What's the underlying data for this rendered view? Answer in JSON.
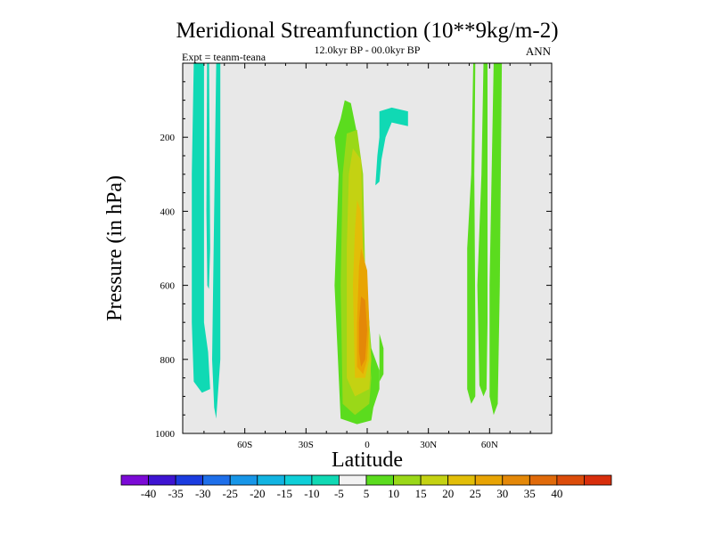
{
  "chart_data": {
    "type": "filled-contour",
    "title": "Meridional Streamfunction (10**9kg/m-2)",
    "subtitle": "12.0kyr BP - 00.0kyr BP",
    "season_label": "ANN",
    "expt_label": "Expt = teanm-teana",
    "xlabel": "Latitude",
    "ylabel": "Pressure (in hPa)",
    "xlim": [
      -90,
      90
    ],
    "ylim": [
      0,
      1000
    ],
    "y_reversed": true,
    "x_ticks": [
      {
        "value": -60,
        "label": "60S"
      },
      {
        "value": -30,
        "label": "30S"
      },
      {
        "value": 0,
        "label": "0"
      },
      {
        "value": 30,
        "label": "30N"
      },
      {
        "value": 60,
        "label": "60N"
      }
    ],
    "y_ticks": [
      {
        "value": 200,
        "label": "200"
      },
      {
        "value": 400,
        "label": "400"
      },
      {
        "value": 600,
        "label": "600"
      },
      {
        "value": 800,
        "label": "800"
      },
      {
        "value": 1000,
        "label": "1000"
      }
    ],
    "background_color": "#e8e8e8",
    "colorbar": {
      "colors": [
        "#7b0ad6",
        "#3e14d2",
        "#1b3ce0",
        "#1e6fea",
        "#1796e8",
        "#12b4e2",
        "#0fcfd8",
        "#10d9b4",
        "#f2f2f2",
        "#5bdc1e",
        "#9ad818",
        "#c4d212",
        "#e2be08",
        "#e8a404",
        "#e48808",
        "#e06a0a",
        "#dc4c0a",
        "#d82e0c"
      ],
      "labels": [
        "-40",
        "-35",
        "-30",
        "-25",
        "-20",
        "-15",
        "-10",
        "-5",
        "5",
        "10",
        "15",
        "20",
        "25",
        "30",
        "35",
        "40"
      ]
    },
    "regions": [
      {
        "name": "south-polar-cell-outer",
        "level": -5,
        "color": "#10d9b4",
        "points": [
          [
            -85,
            0
          ],
          [
            -80,
            0
          ],
          [
            -80,
            700
          ],
          [
            -78,
            780
          ],
          [
            -77,
            880
          ],
          [
            -81,
            890
          ],
          [
            -85,
            860
          ],
          [
            -86,
            700
          ],
          [
            -86,
            300
          ]
        ]
      },
      {
        "name": "south-polar-cell-inner",
        "level": -5,
        "color": "#10d9b4",
        "points": [
          [
            -74,
            0
          ],
          [
            -72,
            0
          ],
          [
            -72,
            800
          ],
          [
            -73,
            880
          ],
          [
            -74,
            960
          ],
          [
            -75,
            930
          ],
          [
            -76,
            800
          ],
          [
            -75,
            400
          ]
        ]
      },
      {
        "name": "south-polar-cell-thin",
        "level": -5,
        "color": "#10d9b4",
        "points": [
          [
            -78.5,
            0
          ],
          [
            -77.5,
            0
          ],
          [
            -77,
            500
          ],
          [
            -77.6,
            610
          ],
          [
            -78.4,
            600
          ],
          [
            -78.8,
            400
          ]
        ]
      },
      {
        "name": "tropical-cell-10",
        "level": 10,
        "color": "#5bdc1e",
        "points": [
          [
            -13,
            150
          ],
          [
            -11,
            100
          ],
          [
            -8,
            108
          ],
          [
            -5,
            190
          ],
          [
            -3,
            300
          ],
          [
            -2,
            560
          ],
          [
            1,
            700
          ],
          [
            2,
            770
          ],
          [
            6,
            830
          ],
          [
            6,
            880
          ],
          [
            3,
            930
          ],
          [
            2,
            965
          ],
          [
            -5,
            975
          ],
          [
            -13,
            960
          ],
          [
            -16,
            600
          ],
          [
            -15,
            450
          ],
          [
            -14,
            300
          ],
          [
            -16,
            200
          ]
        ]
      },
      {
        "name": "tropical-cell-10-tail",
        "level": 10,
        "color": "#5bdc1e",
        "points": [
          [
            6,
            730
          ],
          [
            8,
            770
          ],
          [
            8,
            840
          ],
          [
            6,
            860
          ]
        ]
      },
      {
        "name": "tropical-cell-15",
        "level": 15,
        "color": "#9ad818",
        "points": [
          [
            -10,
            190
          ],
          [
            -5,
            180
          ],
          [
            -2,
            300
          ],
          [
            -1,
            560
          ],
          [
            1,
            780
          ],
          [
            2,
            850
          ],
          [
            1,
            920
          ],
          [
            -6,
            950
          ],
          [
            -12,
            920
          ],
          [
            -13,
            600
          ],
          [
            -12,
            300
          ]
        ]
      },
      {
        "name": "tropical-cell-20",
        "level": 20,
        "color": "#c4d212",
        "points": [
          [
            -7,
            230
          ],
          [
            -3,
            260
          ],
          [
            -2,
            500
          ],
          [
            0,
            600
          ],
          [
            2,
            800
          ],
          [
            1,
            880
          ],
          [
            -6,
            900
          ],
          [
            -10,
            850
          ],
          [
            -10,
            500
          ],
          [
            -9,
            300
          ]
        ]
      },
      {
        "name": "tropical-cell-25",
        "level": 25,
        "color": "#e2be08",
        "points": [
          [
            -5,
            370
          ],
          [
            -3,
            400
          ],
          [
            -1,
            600
          ],
          [
            1,
            700
          ],
          [
            1,
            800
          ],
          [
            -1,
            850
          ],
          [
            -6,
            850
          ],
          [
            -7,
            600
          ],
          [
            -6,
            450
          ]
        ]
      },
      {
        "name": "tropical-cell-30",
        "level": 30,
        "color": "#e8a404",
        "points": [
          [
            -3,
            500
          ],
          [
            0,
            560
          ],
          [
            1,
            700
          ],
          [
            0,
            800
          ],
          [
            -2,
            840
          ],
          [
            -5,
            820
          ],
          [
            -5,
            700
          ],
          [
            -4,
            550
          ]
        ]
      },
      {
        "name": "tropical-cell-35",
        "level": 35,
        "color": "#e48808",
        "points": [
          [
            -3,
            630
          ],
          [
            -1,
            640
          ],
          [
            0,
            720
          ],
          [
            -1,
            800
          ],
          [
            -3,
            820
          ],
          [
            -4,
            780
          ],
          [
            -4,
            700
          ]
        ]
      },
      {
        "name": "north-tropical-cell-neg",
        "level": -5,
        "color": "#10d9b4",
        "points": [
          [
            6,
            130
          ],
          [
            12,
            120
          ],
          [
            20,
            130
          ],
          [
            20,
            170
          ],
          [
            12,
            160
          ],
          [
            9,
            200
          ],
          [
            7,
            260
          ],
          [
            6,
            320
          ],
          [
            4,
            330
          ],
          [
            5,
            250
          ],
          [
            6,
            200
          ]
        ]
      },
      {
        "name": "north-polar-cell-a",
        "level": 10,
        "color": "#5bdc1e",
        "points": [
          [
            52,
            0
          ],
          [
            53,
            0
          ],
          [
            52.5,
            300
          ],
          [
            53,
            700
          ],
          [
            53,
            900
          ],
          [
            51,
            920
          ],
          [
            49,
            880
          ],
          [
            49,
            500
          ],
          [
            51,
            300
          ]
        ]
      },
      {
        "name": "north-polar-cell-b",
        "level": 10,
        "color": "#5bdc1e",
        "points": [
          [
            57,
            0
          ],
          [
            59,
            0
          ],
          [
            59,
            700
          ],
          [
            58.5,
            880
          ],
          [
            57,
            900
          ],
          [
            55,
            870
          ],
          [
            54,
            600
          ],
          [
            56,
            300
          ]
        ]
      },
      {
        "name": "north-polar-cell-c",
        "level": 10,
        "color": "#5bdc1e",
        "points": [
          [
            62,
            0
          ],
          [
            66,
            0
          ],
          [
            65,
            600
          ],
          [
            64,
            920
          ],
          [
            62,
            950
          ],
          [
            60,
            900
          ],
          [
            60,
            600
          ],
          [
            61,
            300
          ]
        ]
      }
    ]
  }
}
